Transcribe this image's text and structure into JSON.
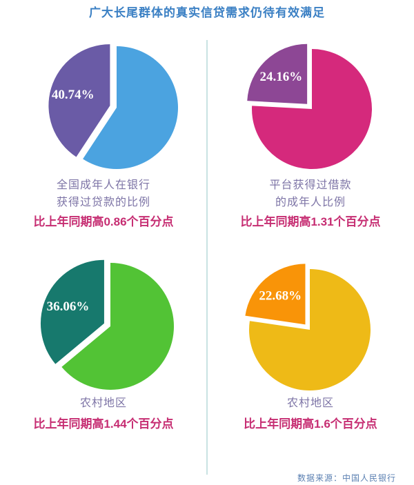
{
  "title": "广大长尾群体的真实信贷需求仍待有效满足",
  "source": "数据来源：中国人民银行",
  "colors": {
    "title_blue": "#3b80c4",
    "caption_purple_gray": "#7d74a6",
    "delta_magenta": "#c62d72",
    "source_blue": "#5b80b2",
    "divider": "#c9e2e2",
    "percent_label_text": "#ffffff"
  },
  "chart_data": [
    {
      "type": "pie",
      "highlight": {
        "value": 40.74,
        "label": "40.74%",
        "color": "#6a5ba6"
      },
      "rest": {
        "value": 59.26,
        "color": "#4ba3e0"
      },
      "caption_lines": [
        "全国成年人在银行",
        "获得过贷款的比例"
      ],
      "delta_note": "比上年同期高0.86个百分点"
    },
    {
      "type": "pie",
      "highlight": {
        "value": 24.16,
        "label": "24.16%",
        "color": "#8d4795"
      },
      "rest": {
        "value": 75.84,
        "color": "#d5297c"
      },
      "caption_lines": [
        "平台获得过借款",
        "的成年人比例"
      ],
      "delta_note": "比上年同期高1.31个百分点"
    },
    {
      "type": "pie",
      "highlight": {
        "value": 36.06,
        "label": "36.06%",
        "color": "#17796d"
      },
      "rest": {
        "value": 63.94,
        "color": "#52c335"
      },
      "caption_lines": [
        "农村地区"
      ],
      "delta_note": "比上年同期高1.44个百分点"
    },
    {
      "type": "pie",
      "highlight": {
        "value": 22.68,
        "label": "22.68%",
        "color": "#f99408"
      },
      "rest": {
        "value": 77.32,
        "color": "#eeba17"
      },
      "caption_lines": [
        "农村地区"
      ],
      "delta_note": "比上年同期高1.6个百分点"
    }
  ]
}
